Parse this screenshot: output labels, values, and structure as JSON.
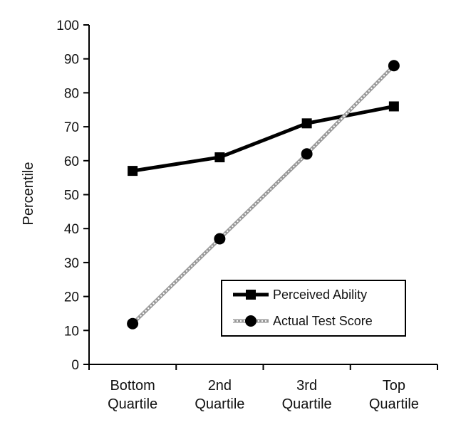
{
  "chart_data": {
    "type": "line",
    "categories": [
      [
        "Bottom",
        "Quartile"
      ],
      [
        "2nd",
        "Quartile"
      ],
      [
        "3rd",
        "Quartile"
      ],
      [
        "Top",
        "Quartile"
      ]
    ],
    "ylabel": "Percentile",
    "xlabel": "",
    "ylim": [
      0,
      100
    ],
    "yticks": [
      0,
      10,
      20,
      30,
      40,
      50,
      60,
      70,
      80,
      90,
      100
    ],
    "grid": false,
    "legend": "bottom-right",
    "series": [
      {
        "name": "Perceived Ability",
        "values": [
          57,
          61,
          71,
          76
        ],
        "marker": "square",
        "color": "#000000",
        "line": "solid"
      },
      {
        "name": "Actual Test Score",
        "values": [
          12,
          37,
          62,
          88
        ],
        "marker": "circle",
        "color": "#aaaaaa",
        "line": "dotted"
      }
    ]
  }
}
